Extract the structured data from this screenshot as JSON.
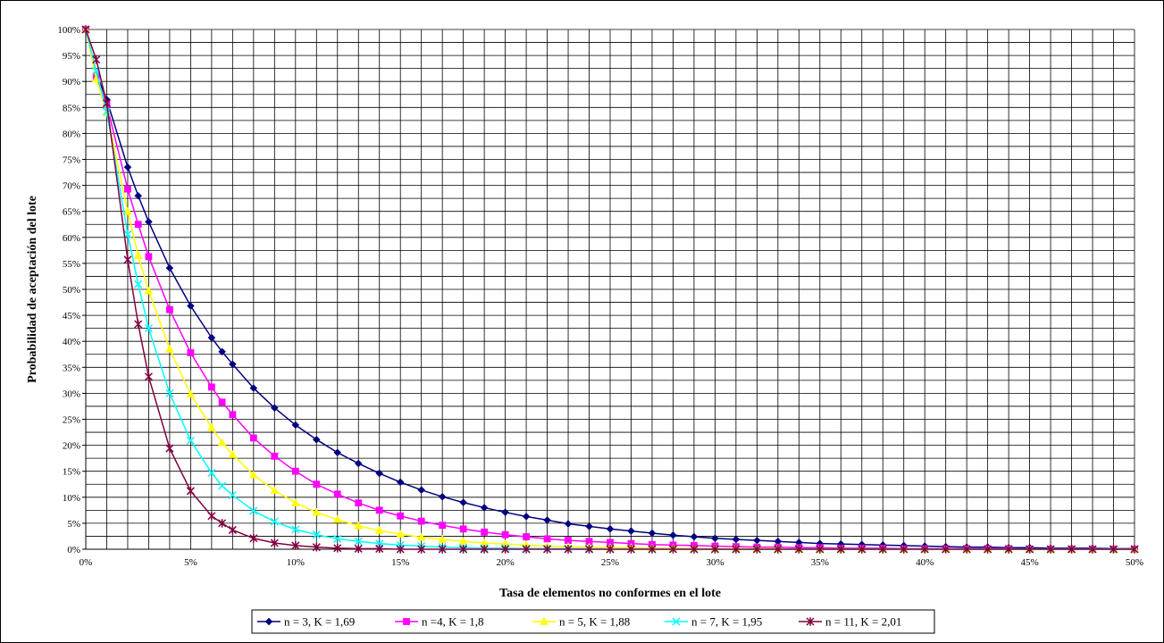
{
  "chart_data": {
    "type": "line",
    "title": "",
    "xlabel": "Tasa de elementos no conformes en el lote",
    "ylabel": "Probabilidad de aceptación del lote",
    "xlim": [
      0,
      0.5
    ],
    "ylim": [
      0,
      1
    ],
    "x_ticks": [
      "0%",
      "5%",
      "10%",
      "15%",
      "20%",
      "25%",
      "30%",
      "35%",
      "40%",
      "45%",
      "50%"
    ],
    "y_ticks": [
      "0%",
      "5%",
      "10%",
      "15%",
      "20%",
      "25%",
      "30%",
      "35%",
      "40%",
      "45%",
      "50%",
      "55%",
      "60%",
      "65%",
      "70%",
      "75%",
      "80%",
      "85%",
      "90%",
      "95%",
      "100%"
    ],
    "grid": true,
    "legend_position": "bottom",
    "series": [
      {
        "name": "n = 3, K = 1,69",
        "color": "#000080",
        "marker": "diamond",
        "x": [
          0,
          0.005,
          0.01,
          0.02,
          0.025,
          0.03,
          0.04,
          0.05,
          0.06,
          0.065,
          0.07,
          0.08,
          0.09,
          0.1,
          0.11,
          0.12,
          0.13,
          0.14,
          0.15,
          0.16,
          0.17,
          0.18,
          0.19,
          0.2,
          0.21,
          0.22,
          0.23,
          0.24,
          0.25,
          0.26,
          0.27,
          0.28,
          0.29,
          0.3,
          0.31,
          0.32,
          0.33,
          0.34,
          0.35,
          0.36,
          0.37,
          0.38,
          0.39,
          0.4,
          0.41,
          0.42,
          0.43,
          0.44,
          0.45,
          0.46,
          0.47,
          0.48,
          0.49,
          0.5
        ],
        "values": [
          1.0,
          0.915,
          0.865,
          0.735,
          0.68,
          0.63,
          0.541,
          0.468,
          0.407,
          0.38,
          0.356,
          0.31,
          0.272,
          0.239,
          0.211,
          0.186,
          0.165,
          0.146,
          0.129,
          0.114,
          0.101,
          0.09,
          0.08,
          0.071,
          0.063,
          0.056,
          0.049,
          0.044,
          0.039,
          0.035,
          0.031,
          0.027,
          0.024,
          0.021,
          0.019,
          0.017,
          0.015,
          0.013,
          0.011,
          0.01,
          0.009,
          0.008,
          0.007,
          0.006,
          0.005,
          0.004,
          0.004,
          0.003,
          0.003,
          0.002,
          0.002,
          0.002,
          0.001,
          0.001
        ]
      },
      {
        "name": "n =4, K = 1,8",
        "color": "#FF00FF",
        "marker": "square",
        "x": [
          0,
          0.005,
          0.01,
          0.02,
          0.025,
          0.03,
          0.04,
          0.05,
          0.06,
          0.065,
          0.07,
          0.08,
          0.09,
          0.1,
          0.11,
          0.12,
          0.13,
          0.14,
          0.15,
          0.16,
          0.17,
          0.18,
          0.19,
          0.2,
          0.21,
          0.22,
          0.23,
          0.24,
          0.25,
          0.26,
          0.27,
          0.28,
          0.29,
          0.3,
          0.31,
          0.32,
          0.33,
          0.34,
          0.35,
          0.36,
          0.37,
          0.38,
          0.39,
          0.4,
          0.41,
          0.42,
          0.43,
          0.44,
          0.45,
          0.46,
          0.47,
          0.48,
          0.49,
          0.5
        ],
        "values": [
          1.0,
          0.91,
          0.855,
          0.693,
          0.625,
          0.563,
          0.461,
          0.378,
          0.312,
          0.283,
          0.259,
          0.214,
          0.179,
          0.15,
          0.125,
          0.106,
          0.089,
          0.075,
          0.064,
          0.054,
          0.046,
          0.039,
          0.033,
          0.028,
          0.024,
          0.02,
          0.017,
          0.015,
          0.013,
          0.011,
          0.009,
          0.008,
          0.007,
          0.006,
          0.005,
          0.004,
          0.004,
          0.003,
          0.003,
          0.002,
          0.002,
          0.002,
          0.001,
          0.001,
          0.001,
          0.001,
          0.001,
          0.001,
          0.0,
          0.0,
          0.0,
          0.0,
          0.0,
          0.0
        ]
      },
      {
        "name": "n = 5, K = 1,88",
        "color": "#FFFF00",
        "marker": "triangle",
        "x": [
          0,
          0.005,
          0.01,
          0.02,
          0.025,
          0.03,
          0.04,
          0.05,
          0.06,
          0.065,
          0.07,
          0.08,
          0.09,
          0.1,
          0.11,
          0.12,
          0.13,
          0.14,
          0.15,
          0.16,
          0.17,
          0.18,
          0.19,
          0.2,
          0.21,
          0.22,
          0.23,
          0.24,
          0.25,
          0.26,
          0.27,
          0.28,
          0.29,
          0.3,
          0.31,
          0.32,
          0.33,
          0.34,
          0.35,
          0.36,
          0.37,
          0.38,
          0.39,
          0.4,
          0.41,
          0.42,
          0.43,
          0.44,
          0.45,
          0.46,
          0.47,
          0.48,
          0.49,
          0.5
        ],
        "values": [
          1.0,
          0.905,
          0.84,
          0.65,
          0.565,
          0.497,
          0.385,
          0.298,
          0.234,
          0.205,
          0.182,
          0.143,
          0.113,
          0.089,
          0.071,
          0.057,
          0.045,
          0.036,
          0.029,
          0.023,
          0.019,
          0.015,
          0.012,
          0.01,
          0.008,
          0.006,
          0.005,
          0.004,
          0.003,
          0.003,
          0.002,
          0.002,
          0.001,
          0.001,
          0.001,
          0.001,
          0.001,
          0.0,
          0.0,
          0.0,
          0.0,
          0.0,
          0.0,
          0.0,
          0.0,
          0.0,
          0.0,
          0.0,
          0.0,
          0.0,
          0.0,
          0.0,
          0.0,
          0.0
        ]
      },
      {
        "name": "n = 7, K = 1,95",
        "color": "#00FFFF",
        "marker": "x",
        "x": [
          0,
          0.005,
          0.01,
          0.02,
          0.025,
          0.03,
          0.04,
          0.05,
          0.06,
          0.065,
          0.07,
          0.08,
          0.09,
          0.1,
          0.11,
          0.12,
          0.13,
          0.14,
          0.15,
          0.16,
          0.17,
          0.18,
          0.19,
          0.2,
          0.21,
          0.22,
          0.23,
          0.24,
          0.25,
          0.26,
          0.27,
          0.28,
          0.29,
          0.3,
          0.31,
          0.32,
          0.33,
          0.34,
          0.35,
          0.36,
          0.37,
          0.38,
          0.39,
          0.4,
          0.41,
          0.42,
          0.43,
          0.44,
          0.45,
          0.46,
          0.47,
          0.48,
          0.49,
          0.5
        ],
        "values": [
          1.0,
          0.92,
          0.842,
          0.606,
          0.51,
          0.425,
          0.3,
          0.209,
          0.147,
          0.122,
          0.104,
          0.074,
          0.053,
          0.038,
          0.028,
          0.02,
          0.015,
          0.011,
          0.008,
          0.006,
          0.004,
          0.003,
          0.002,
          0.002,
          0.001,
          0.001,
          0.001,
          0.001,
          0.0,
          0.0,
          0.0,
          0.0,
          0.0,
          0.0,
          0.0,
          0.0,
          0.0,
          0.0,
          0.0,
          0.0,
          0.0,
          0.0,
          0.0,
          0.0,
          0.0,
          0.0,
          0.0,
          0.0,
          0.0,
          0.0,
          0.0,
          0.0,
          0.0,
          0.0
        ]
      },
      {
        "name": "n = 11, K = 2,01",
        "color": "#800040",
        "marker": "star",
        "x": [
          0,
          0.005,
          0.01,
          0.02,
          0.025,
          0.03,
          0.04,
          0.05,
          0.06,
          0.065,
          0.07,
          0.08,
          0.09,
          0.1,
          0.11,
          0.12,
          0.13,
          0.14,
          0.15,
          0.16,
          0.17,
          0.18,
          0.19,
          0.2,
          0.21,
          0.22,
          0.23,
          0.24,
          0.25,
          0.26,
          0.27,
          0.28,
          0.29,
          0.3,
          0.31,
          0.32,
          0.33,
          0.34,
          0.35,
          0.36,
          0.37,
          0.38,
          0.39,
          0.4,
          0.41,
          0.42,
          0.43,
          0.44,
          0.45,
          0.46,
          0.47,
          0.48,
          0.49,
          0.5
        ],
        "values": [
          1.0,
          0.942,
          0.858,
          0.557,
          0.433,
          0.332,
          0.194,
          0.112,
          0.064,
          0.05,
          0.037,
          0.021,
          0.012,
          0.007,
          0.004,
          0.002,
          0.001,
          0.001,
          0.0,
          0.0,
          0.0,
          0.0,
          0.0,
          0.0,
          0.0,
          0.0,
          0.0,
          0.0,
          0.0,
          0.0,
          0.0,
          0.0,
          0.0,
          0.0,
          0.0,
          0.0,
          0.0,
          0.0,
          0.0,
          0.0,
          0.0,
          0.0,
          0.0,
          0.0,
          0.0,
          0.0,
          0.0,
          0.0,
          0.0,
          0.0,
          0.0,
          0.0,
          0.0,
          0.0
        ]
      }
    ]
  }
}
